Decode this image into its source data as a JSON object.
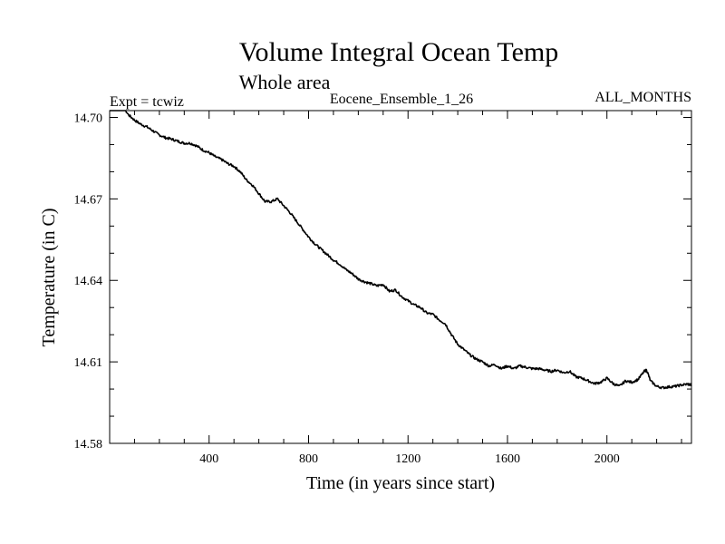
{
  "chart_data": {
    "type": "line",
    "title": "Volume Integral Ocean Temp",
    "subtitle": "Whole area",
    "header_left": "Expt = tcwiz",
    "header_center": "Eocene_Ensemble_1_26",
    "header_right": "ALL_MONTHS",
    "xlabel": "Time (in years since start)",
    "ylabel": "Temperature (in C)",
    "xlim": [
      0,
      2340
    ],
    "ylim": [
      14.58,
      14.7025
    ],
    "x_ticks": [
      400,
      800,
      1200,
      1600,
      2000
    ],
    "x_tick_labels": [
      "400",
      "800",
      "1200",
      "1600",
      "2000"
    ],
    "y_ticks": [
      14.58,
      14.61,
      14.64,
      14.67,
      14.7
    ],
    "y_tick_labels": [
      "14.58",
      "14.61",
      "14.64",
      "14.67",
      "14.70"
    ],
    "grid": false,
    "line_color": "#000000",
    "series": [
      {
        "x": [
          0,
          25,
          50,
          75,
          100,
          125,
          150,
          175,
          200,
          225,
          250,
          275,
          300,
          325,
          350,
          375,
          400,
          425,
          450,
          475,
          500,
          525,
          550,
          575,
          600,
          625,
          650,
          675,
          700,
          725,
          750,
          775,
          800,
          825,
          850,
          875,
          900,
          925,
          950,
          975,
          1000,
          1025,
          1050,
          1075,
          1100,
          1125,
          1150,
          1175,
          1200,
          1225,
          1250,
          1275,
          1300,
          1325,
          1350,
          1375,
          1400,
          1425,
          1450,
          1475,
          1500,
          1525,
          1550,
          1575,
          1600,
          1625,
          1650,
          1675,
          1700,
          1725,
          1750,
          1775,
          1800,
          1825,
          1850,
          1875,
          1900,
          1925,
          1950,
          1975,
          2000,
          2025,
          2050,
          2075,
          2100,
          2125,
          2150,
          2160,
          2175,
          2200,
          2225,
          2250,
          2275,
          2300,
          2325,
          2340
        ],
        "values": [
          14.7045,
          14.704,
          14.7045,
          14.701,
          14.699,
          14.6975,
          14.6965,
          14.695,
          14.6935,
          14.6925,
          14.692,
          14.6912,
          14.6905,
          14.6905,
          14.6895,
          14.688,
          14.687,
          14.6855,
          14.6845,
          14.683,
          14.682,
          14.68,
          14.677,
          14.675,
          14.672,
          14.669,
          14.669,
          14.67,
          14.6675,
          14.665,
          14.662,
          14.659,
          14.656,
          14.6535,
          14.6515,
          14.6495,
          14.6475,
          14.646,
          14.644,
          14.6425,
          14.6405,
          14.6395,
          14.6388,
          14.638,
          14.6385,
          14.636,
          14.6365,
          14.634,
          14.6325,
          14.631,
          14.63,
          14.628,
          14.6275,
          14.6255,
          14.624,
          14.62,
          14.6165,
          14.6145,
          14.6125,
          14.611,
          14.61,
          14.6085,
          14.609,
          14.6075,
          14.6085,
          14.6075,
          14.6085,
          14.608,
          14.6075,
          14.6075,
          14.607,
          14.6065,
          14.607,
          14.606,
          14.6065,
          14.6045,
          14.604,
          14.603,
          14.602,
          14.6025,
          14.604,
          14.602,
          14.601,
          14.603,
          14.6025,
          14.6035,
          14.6065,
          14.607,
          14.603,
          14.601,
          14.6005,
          14.6008,
          14.601,
          14.6015,
          14.6018,
          14.6015
        ]
      }
    ]
  }
}
